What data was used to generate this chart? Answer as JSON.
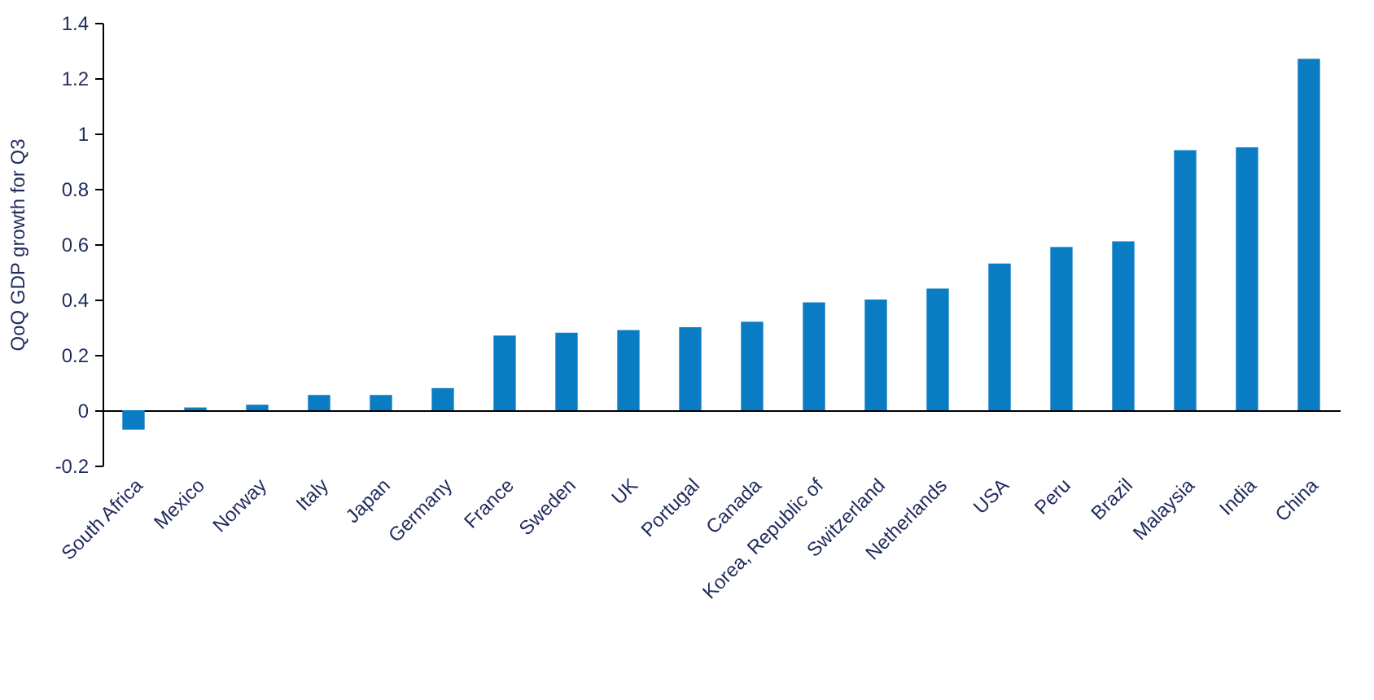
{
  "chart_data": {
    "type": "bar",
    "ylabel": "QoQ GDP growth for Q3",
    "categories": [
      "South Africa",
      "Mexico",
      "Norway",
      "Italy",
      "Japan",
      "Germany",
      "France",
      "Sweden",
      "UK",
      "Portugal",
      "Canada",
      "Korea, Republic of",
      "Switzerland",
      "Netherlands",
      "USA",
      "Peru",
      "Brazil",
      "Malaysia",
      "India",
      "China"
    ],
    "values": [
      -0.07,
      0.01,
      0.02,
      0.055,
      0.055,
      0.08,
      0.27,
      0.28,
      0.29,
      0.3,
      0.32,
      0.39,
      0.4,
      0.44,
      0.53,
      0.59,
      0.61,
      0.94,
      0.95,
      1.27
    ],
    "color": "#0a7cc4",
    "ylim": [
      -0.2,
      1.4
    ],
    "yticks": [
      -0.2,
      0,
      0.2,
      0.4,
      0.6,
      0.8,
      1,
      1.2,
      1.4
    ]
  }
}
